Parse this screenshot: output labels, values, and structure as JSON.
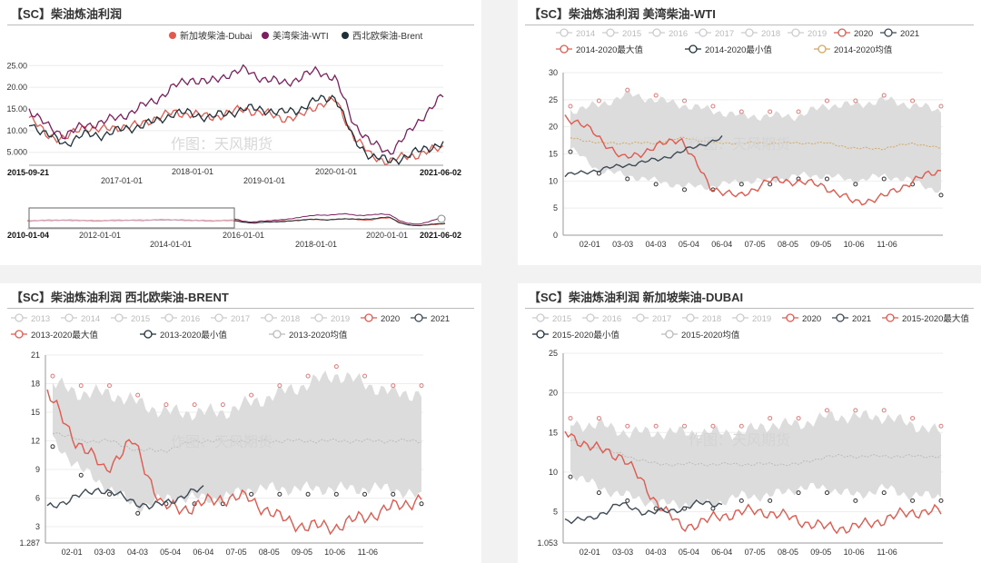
{
  "colors": {
    "red": "#e05a4f",
    "purple": "#7b1f5e",
    "dark": "#1f3038",
    "band": "#dcdcdc",
    "avg_ocher": "#d3a860",
    "avg_grey": "#bbbbbb",
    "legend_off": "#cccccc"
  },
  "chart_data": [
    {
      "id": "p1",
      "type": "line",
      "title": "【SC】柴油炼油利润",
      "legend": [
        "新加坡柴油-Dubai",
        "美湾柴油-WTI",
        "西北欧柴油-Brent"
      ],
      "y_ticks": [
        "25.00",
        "20.00",
        "15.00",
        "10.00",
        "5.000"
      ],
      "ylim": [
        2,
        28
      ],
      "x_start_label": "2015-09-21",
      "x_end_label": "2021-06-02",
      "x_ticks": [
        "2017-01-01",
        "2018-01-01",
        "2019-01-01",
        "2020-01-01"
      ],
      "x_dates": [
        "2015-09",
        "2015-12",
        "2016-03",
        "2016-06",
        "2016-09",
        "2016-12",
        "2017-03",
        "2017-06",
        "2017-09",
        "2017-12",
        "2018-03",
        "2018-06",
        "2018-09",
        "2018-12",
        "2019-03",
        "2019-06",
        "2019-09",
        "2019-12",
        "2020-03",
        "2020-06",
        "2020-09",
        "2020-12",
        "2021-03",
        "2021-06"
      ],
      "series": [
        {
          "name": "新加坡柴油-Dubai",
          "values": [
            13,
            9,
            8,
            11,
            10,
            11,
            11,
            13,
            14,
            14,
            13,
            14,
            15,
            14,
            13,
            13,
            16,
            17,
            9,
            4,
            3,
            4,
            5,
            6
          ]
        },
        {
          "name": "美湾柴油-WTI",
          "values": [
            15,
            11,
            9,
            11,
            12,
            13,
            15,
            17,
            20,
            22,
            21,
            23,
            24,
            22,
            21,
            22,
            24,
            22,
            12,
            7,
            5,
            9,
            14,
            18
          ]
        },
        {
          "name": "西北欧柴油-Brent",
          "values": [
            12,
            9,
            7,
            9,
            9,
            10,
            11,
            12,
            14,
            14,
            13,
            14,
            15,
            15,
            14,
            15,
            17,
            18,
            8,
            4,
            3,
            4,
            6,
            7
          ]
        }
      ],
      "slider": {
        "start_label": "2010-01-04",
        "end_label": "2021-06-02",
        "ticks": [
          "2012-01-01",
          "2014-01-01",
          "2016-01-01",
          "2018-01-01",
          "2020-01-01"
        ]
      },
      "watermark": "作图：天风期货"
    },
    {
      "id": "p2",
      "type": "line",
      "title": "【SC】柴油炼油利润 美湾柴油-WTI",
      "legend_row1": [
        "2014",
        "2015",
        "2016",
        "2017",
        "2018",
        "2019",
        "2020",
        "2021"
      ],
      "legend_row2": [
        "2014-2020最大值",
        "2014-2020最小值",
        "2014-2020均值"
      ],
      "y_ticks": [
        "30",
        "25",
        "20",
        "15",
        "10",
        "5",
        "0"
      ],
      "ylim": [
        0,
        30
      ],
      "x_ticks": [
        "02-01",
        "03-03",
        "04-03",
        "05-04",
        "06-04",
        "07-05",
        "08-05",
        "09-05",
        "10-06",
        "11-06"
      ],
      "series": [
        {
          "name": "2014-2020最大值",
          "values": [
            23,
            24,
            26,
            25,
            24,
            23,
            22,
            22,
            22,
            24,
            24,
            25,
            24,
            23
          ]
        },
        {
          "name": "2014-2020最小值",
          "values": [
            16,
            12,
            11,
            10,
            9,
            9,
            10,
            10,
            11,
            11,
            10,
            11,
            10,
            8
          ]
        },
        {
          "name": "2014-2020均值",
          "values": [
            18,
            17,
            17,
            17,
            18,
            17,
            17,
            17,
            17,
            17,
            16,
            16,
            17,
            16
          ]
        },
        {
          "name": "2020",
          "values": [
            22,
            19,
            14,
            16,
            18,
            9,
            7,
            10,
            10,
            9,
            6,
            7,
            10,
            12
          ]
        },
        {
          "name": "2021",
          "values": [
            11,
            12,
            13,
            14,
            16,
            18
          ]
        }
      ],
      "watermark": "作图：天风期货"
    },
    {
      "id": "p3",
      "type": "line",
      "title": "【SC】柴油炼油利润 西北欧柴油-BRENT",
      "legend_row1": [
        "2013",
        "2014",
        "2015",
        "2016",
        "2017",
        "2018",
        "2019",
        "2020",
        "2021"
      ],
      "legend_row2": [
        "2013-2020最大值",
        "2013-2020最小值",
        "2013-2020均值"
      ],
      "y_ticks": [
        "21",
        "18",
        "15",
        "12",
        "9",
        "6",
        "3",
        "1.287"
      ],
      "y_tick_values": [
        21,
        18,
        15,
        12,
        9,
        6,
        3,
        1.287
      ],
      "ylim": [
        1.287,
        21
      ],
      "x_ticks": [
        "02-01",
        "03-03",
        "04-03",
        "05-04",
        "06-04",
        "07-05",
        "08-05",
        "09-05",
        "10-06",
        "11-06"
      ],
      "series": [
        {
          "name": "2013-2020最大值",
          "values": [
            18,
            17,
            17,
            16,
            15,
            15,
            15,
            16,
            17,
            18,
            19,
            18,
            17,
            17
          ]
        },
        {
          "name": "2013-2020最小值",
          "values": [
            12,
            9,
            7,
            5,
            6,
            6,
            6,
            7,
            7,
            7,
            7,
            7,
            7,
            6
          ]
        },
        {
          "name": "2013-2020均值",
          "values": [
            13,
            12,
            12,
            11,
            11,
            12,
            12,
            12,
            12,
            12,
            12,
            12,
            12,
            12
          ]
        },
        {
          "name": "2020",
          "values": [
            17,
            12,
            9,
            12,
            5,
            5,
            6,
            6,
            4,
            3,
            3,
            4,
            5,
            6
          ]
        },
        {
          "name": "2021",
          "values": [
            5,
            6,
            7,
            6,
            5,
            6,
            7
          ]
        }
      ],
      "watermark": "作图：天风期货"
    },
    {
      "id": "p4",
      "type": "line",
      "title": "【SC】柴油炼油利润 新加坡柴油-DUBAI",
      "legend_row1": [
        "2015",
        "2016",
        "2017",
        "2018",
        "2019",
        "2020",
        "2021",
        "2015-2020最大值"
      ],
      "legend_row2": [
        "2015-2020最小值",
        "2015-2020均值"
      ],
      "y_ticks": [
        "25",
        "20",
        "15",
        "10",
        "5",
        "1.053"
      ],
      "y_tick_values": [
        25,
        20,
        15,
        10,
        5,
        1.053
      ],
      "ylim": [
        1.053,
        25
      ],
      "x_ticks": [
        "02-01",
        "03-03",
        "04-03",
        "05-04",
        "06-04",
        "07-05",
        "08-05",
        "09-05",
        "10-06",
        "11-06"
      ],
      "series": [
        {
          "name": "2015-2020最大值",
          "values": [
            16,
            16,
            15,
            15,
            15,
            15,
            15,
            16,
            16,
            17,
            17,
            17,
            16,
            15
          ]
        },
        {
          "name": "2015-2020最小值",
          "values": [
            10,
            8,
            7,
            6,
            6,
            6,
            7,
            7,
            8,
            8,
            7,
            8,
            7,
            7
          ]
        },
        {
          "name": "2015-2020均值",
          "values": [
            14,
            13,
            12,
            11,
            11,
            11,
            11,
            11,
            11,
            12,
            12,
            12,
            12,
            12
          ]
        },
        {
          "name": "2020",
          "values": [
            15,
            13,
            12,
            7,
            3,
            4,
            5,
            5,
            4,
            3,
            3,
            4,
            5,
            5
          ]
        },
        {
          "name": "2021",
          "values": [
            4,
            4,
            6,
            5,
            5,
            6,
            6
          ]
        }
      ],
      "watermark": "作图：天风期货"
    }
  ]
}
